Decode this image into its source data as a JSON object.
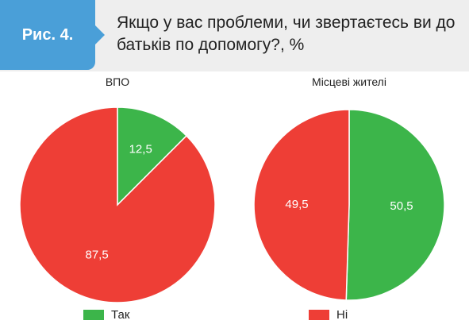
{
  "figure": {
    "label": "Рис. 4."
  },
  "title": "Якщо у вас проблеми, чи звертаєтесь ви до батьків по допомогу?, %",
  "colors": {
    "yes": "#3cb54a",
    "no": "#ee3e36",
    "accent": "#4a9fd8"
  },
  "chart_data": [
    {
      "type": "pie",
      "title": "ВПО",
      "categories": [
        "Так",
        "Ні"
      ],
      "values": [
        12.5,
        87.5
      ],
      "value_labels": [
        "12,5",
        "87,5"
      ],
      "start_angle_deg": 0,
      "direction": "clockwise"
    },
    {
      "type": "pie",
      "title": "Місцеві жителі",
      "categories": [
        "Так",
        "Ні"
      ],
      "values": [
        50.5,
        49.5
      ],
      "value_labels": [
        "50,5",
        "49,5"
      ],
      "start_angle_deg": 0,
      "direction": "clockwise"
    }
  ],
  "legend": [
    {
      "label": "Так",
      "color": "#3cb54a"
    },
    {
      "label": "Ні",
      "color": "#ee3e36"
    }
  ]
}
